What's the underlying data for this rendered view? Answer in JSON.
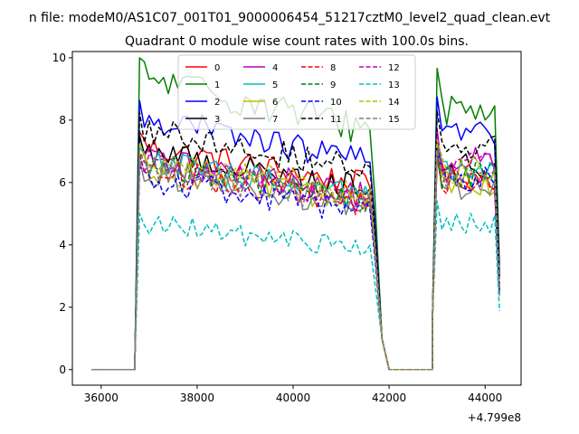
{
  "figure": {
    "suptitle": "n file: modeM0/AS1C07_001T01_9000006454_51217cztM0_level2_quad_clean.evt",
    "title": "Quadrant 0 module wise count rates with 100.0s bins."
  },
  "chart_data": {
    "type": "line",
    "title": "Quadrant 0 module wise count rates with 100.0s bins.",
    "x_offset_label": "+4.799e8",
    "xlabel": "",
    "ylabel": "",
    "xlim": [
      35400,
      44750
    ],
    "ylim": [
      -0.5,
      10.2
    ],
    "xticks": [
      36000,
      38000,
      40000,
      42000,
      44000
    ],
    "yticks": [
      0,
      2,
      4,
      6,
      8,
      10
    ],
    "grid": false,
    "legend_position": "upper center",
    "legend_columns": 4,
    "intervals": [
      {
        "xs": [
          35800,
          36700
        ],
        "values": [
          0,
          0
        ]
      },
      {
        "xs": [
          36700,
          41700
        ],
        "n": 51
      },
      {
        "xs": [
          41700,
          42000
        ],
        "values": [
          0,
          0
        ]
      },
      {
        "xs": [
          42000,
          42900
        ],
        "values": [
          0,
          0
        ]
      },
      {
        "xs": [
          42900,
          44300
        ],
        "n": 15
      }
    ],
    "series": [
      {
        "name": "0",
        "color": "#ff0000",
        "dash": "solid",
        "level1": 6.1,
        "level2": 6.2,
        "amp": 0.45
      },
      {
        "name": "1",
        "color": "#008000",
        "dash": "solid",
        "level1": 8.0,
        "level2": 8.4,
        "amp": 0.55
      },
      {
        "name": "2",
        "color": "#0000ff",
        "dash": "solid",
        "level1": 6.9,
        "level2": 7.6,
        "amp": 0.45
      },
      {
        "name": "3",
        "color": "#000000",
        "dash": "solid",
        "level1": 6.0,
        "level2": 6.5,
        "amp": 0.45
      },
      {
        "name": "4",
        "color": "#bf00bf",
        "dash": "solid",
        "level1": 5.8,
        "level2": 6.7,
        "amp": 0.45
      },
      {
        "name": "5",
        "color": "#00bfbf",
        "dash": "solid",
        "level1": 5.7,
        "level2": 6.3,
        "amp": 0.45
      },
      {
        "name": "6",
        "color": "#bfbf00",
        "dash": "solid",
        "level1": 5.5,
        "level2": 6.0,
        "amp": 0.45
      },
      {
        "name": "7",
        "color": "#808080",
        "dash": "solid",
        "level1": 5.4,
        "level2": 5.9,
        "amp": 0.45
      },
      {
        "name": "8",
        "color": "#ff0000",
        "dash": "dashed",
        "level1": 5.5,
        "level2": 6.0,
        "amp": 0.45
      },
      {
        "name": "9",
        "color": "#008000",
        "dash": "dashed",
        "level1": 5.6,
        "level2": 6.2,
        "amp": 0.45
      },
      {
        "name": "10",
        "color": "#0000ff",
        "dash": "dashed",
        "level1": 5.2,
        "level2": 6.1,
        "amp": 0.45
      },
      {
        "name": "11",
        "color": "#000000",
        "dash": "dashed",
        "level1": 6.6,
        "level2": 7.2,
        "amp": 0.45
      },
      {
        "name": "12",
        "color": "#bf00bf",
        "dash": "dashed",
        "level1": 5.6,
        "level2": 6.5,
        "amp": 0.45
      },
      {
        "name": "13",
        "color": "#00bfbf",
        "dash": "dashed",
        "level1": 4.0,
        "level2": 4.7,
        "amp": 0.35
      },
      {
        "name": "14",
        "color": "#bfbf00",
        "dash": "dashed",
        "level1": 5.8,
        "level2": 6.4,
        "amp": 0.45
      },
      {
        "name": "15",
        "color": "#808080",
        "dash": "dashed",
        "level1": 5.5,
        "level2": 6.1,
        "amp": 0.45
      }
    ]
  }
}
